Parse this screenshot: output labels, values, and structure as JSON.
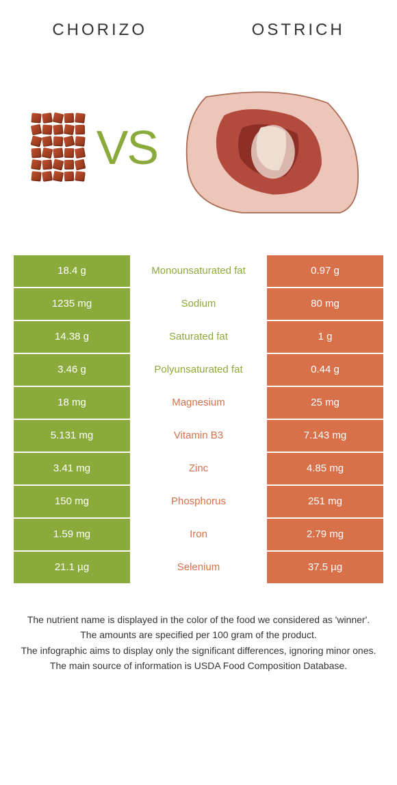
{
  "food_left": {
    "name": "CHORIZO",
    "color": "#8aaa3b"
  },
  "food_right": {
    "name": "Ostrich",
    "color": "#d87049"
  },
  "vs_label": "VS",
  "rows": [
    {
      "left": "18.4 g",
      "label": "Monounsaturated fat",
      "right": "0.97 g",
      "label_color": "#8aaa3b"
    },
    {
      "left": "1235 mg",
      "label": "Sodium",
      "right": "80 mg",
      "label_color": "#8aaa3b"
    },
    {
      "left": "14.38 g",
      "label": "Saturated fat",
      "right": "1 g",
      "label_color": "#8aaa3b"
    },
    {
      "left": "3.46 g",
      "label": "Polyunsaturated fat",
      "right": "0.44 g",
      "label_color": "#8aaa3b"
    },
    {
      "left": "18 mg",
      "label": "Magnesium",
      "right": "25 mg",
      "label_color": "#d87049"
    },
    {
      "left": "5.131 mg",
      "label": "Vitamin B3",
      "right": "7.143 mg",
      "label_color": "#d87049"
    },
    {
      "left": "3.41 mg",
      "label": "Zinc",
      "right": "4.85 mg",
      "label_color": "#d87049"
    },
    {
      "left": "150 mg",
      "label": "Phosphorus",
      "right": "251 mg",
      "label_color": "#d87049"
    },
    {
      "left": "1.59 mg",
      "label": "Iron",
      "right": "2.79 mg",
      "label_color": "#d87049"
    },
    {
      "left": "21.1 µg",
      "label": "Selenium",
      "right": "37.5 µg",
      "label_color": "#d87049"
    }
  ],
  "footnotes": [
    "The nutrient name is displayed in the color of the food we considered as 'winner'.",
    "The amounts are specified per 100 gram of the product.",
    "The infographic aims to display only the significant differences, ignoring minor ones.",
    "The main source of information is USDA Food Composition Database."
  ]
}
